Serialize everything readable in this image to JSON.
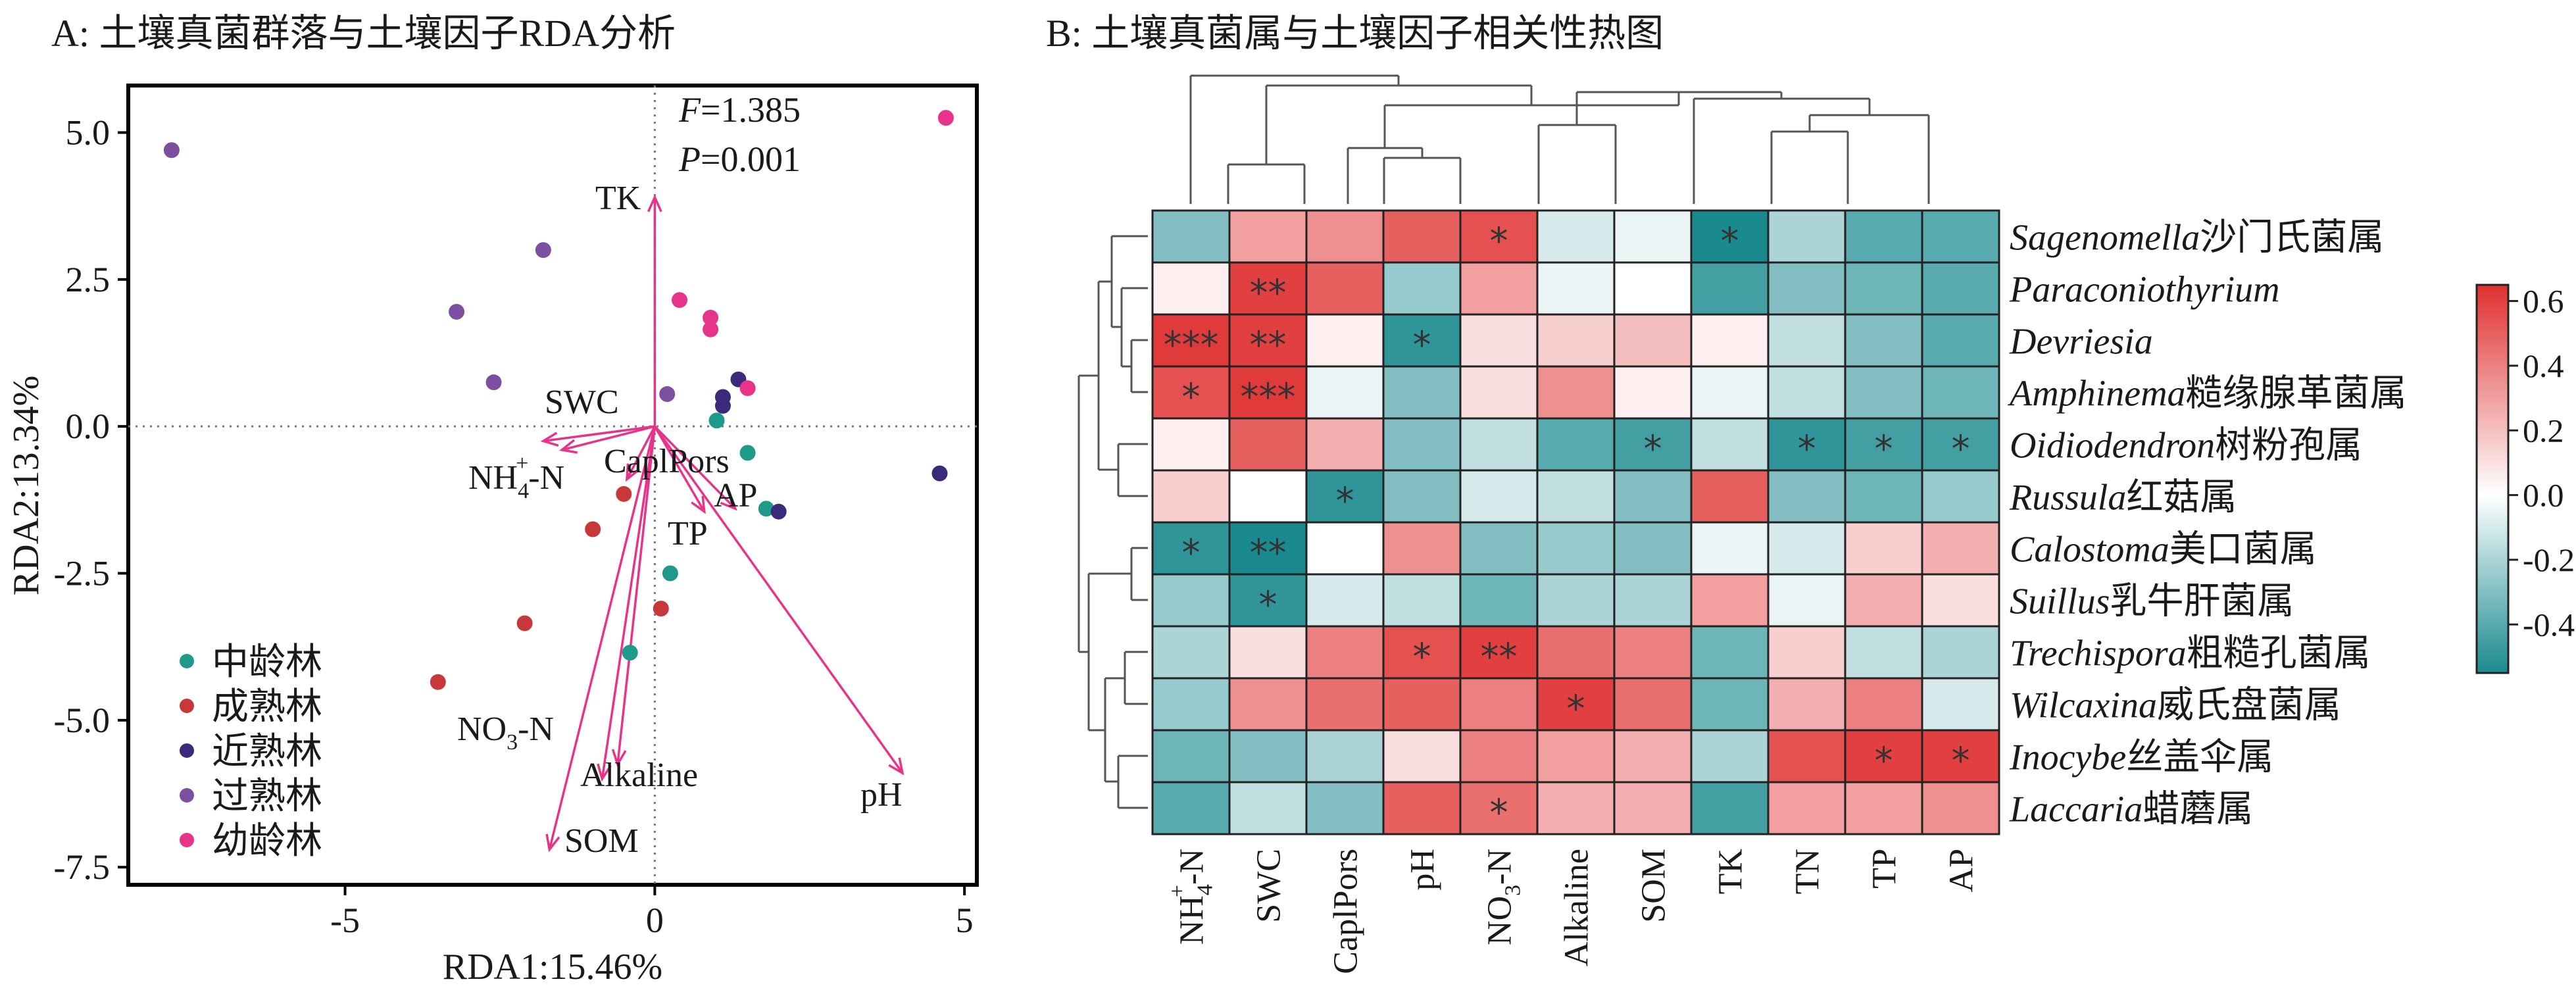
{
  "panel_a_title": "A: 土壤真菌群落与土壤因子RDA分析",
  "panel_b_title": "B: 土壤真菌属与土壤因子相关性热图",
  "colors": {
    "groups": [
      "#1f9a8a",
      "#c8383a",
      "#3b2a7a",
      "#7d4fa0",
      "#e8338a"
    ],
    "arrow": "#e8338a",
    "heat_neg": "#1b8a8f",
    "heat_mid": "#ffffff",
    "heat_pos": "#e03030"
  },
  "chart_data": [
    {
      "type": "scatter",
      "title": "A: 土壤真菌群落与土壤因子RDA分析",
      "xlabel": "RDA1:15.46%",
      "ylabel": "RDA2:13.34%",
      "xlim": [
        -8.5,
        5.2
      ],
      "ylim": [
        -7.8,
        5.8
      ],
      "x_ticks": [
        -5,
        0,
        5
      ],
      "x_tick_labels": [
        "-5",
        "0",
        "5"
      ],
      "y_ticks": [
        5.0,
        2.5,
        0.0,
        -2.5,
        -5.0,
        -7.5
      ],
      "y_tick_labels": [
        "5.0",
        "2.5",
        "0.0",
        "-2.5",
        "-5.0",
        "-7.5"
      ],
      "reference_lines": "dotted at x=0 and y=0",
      "stats": {
        "F_label": "F",
        "F_value": "=1.385",
        "P_label": "P",
        "P_value": "=0.001"
      },
      "legend_position": "bottom-left",
      "series": [
        {
          "name": "中龄林",
          "points": [
            [
              1.0,
              0.1
            ],
            [
              1.5,
              -0.45
            ],
            [
              1.8,
              -1.4
            ],
            [
              0.25,
              -2.5
            ],
            [
              -0.4,
              -3.85
            ]
          ]
        },
        {
          "name": "成熟林",
          "points": [
            [
              -0.5,
              -1.15
            ],
            [
              -1.0,
              -1.75
            ],
            [
              -2.1,
              -3.35
            ],
            [
              0.1,
              -3.1
            ],
            [
              -3.5,
              -4.35
            ]
          ]
        },
        {
          "name": "近熟林",
          "points": [
            [
              1.35,
              0.8
            ],
            [
              1.1,
              0.5
            ],
            [
              1.1,
              0.35
            ],
            [
              2.0,
              -1.45
            ],
            [
              4.6,
              -0.8
            ]
          ]
        },
        {
          "name": "过熟林",
          "points": [
            [
              -7.8,
              4.7
            ],
            [
              -1.8,
              3.0
            ],
            [
              -3.2,
              1.95
            ],
            [
              -2.6,
              0.75
            ],
            [
              0.2,
              0.55
            ]
          ]
        },
        {
          "name": "幼龄林",
          "points": [
            [
              4.7,
              5.25
            ],
            [
              0.4,
              2.15
            ],
            [
              0.9,
              1.85
            ],
            [
              0.9,
              1.65
            ],
            [
              1.5,
              0.65
            ]
          ]
        }
      ],
      "arrows": [
        {
          "name": "TK",
          "x": 0.0,
          "y": 3.9
        },
        {
          "name": "SWC",
          "x": -1.8,
          "y": -0.25
        },
        {
          "name": "NH4+-N",
          "x": -1.5,
          "y": -0.4
        },
        {
          "name": "CaplPors",
          "x": -0.45,
          "y": -0.9
        },
        {
          "name": "AP",
          "x": 1.3,
          "y": -1.4
        },
        {
          "name": "TP",
          "x": 0.8,
          "y": -1.45
        },
        {
          "name": "NO3--N",
          "x": -0.85,
          "y": -6.0
        },
        {
          "name": "Alkaline",
          "x": -0.6,
          "y": -5.75
        },
        {
          "name": "SOM",
          "x": -1.7,
          "y": -7.2
        },
        {
          "name": "pH",
          "x": 4.0,
          "y": -5.9
        }
      ],
      "arrow_labels": {
        "TK": "TK",
        "SWC": "SWC",
        "NH4_main": "NH",
        "NH4_sub": "4",
        "NH4_sup": "+",
        "NH4_tail": "-N",
        "CaplPors": "CaplPors",
        "AP": "AP",
        "TP": "TP",
        "NO3_main": "NO",
        "NO3_sub": "3",
        "NO3_tail": "-N",
        "Alkaline": "Alkaline",
        "SOM": "SOM",
        "pH": "pH"
      }
    },
    {
      "type": "heatmap",
      "title": "B: 土壤真菌属与土壤因子相关性热图",
      "columns": [
        "NH4+-N",
        "SWC",
        "CaplPors",
        "pH",
        "NO3--N",
        "Alkaline",
        "SOM",
        "TK",
        "TN",
        "TP",
        "AP"
      ],
      "column_labels": [
        {
          "main": "NH",
          "sub": "4",
          "sup": "+",
          "tail": "-N"
        },
        {
          "main": "SWC"
        },
        {
          "main": "CaplPors"
        },
        {
          "main": "pH"
        },
        {
          "main": "NO",
          "sub": "3",
          "sup": "",
          "tail": "-N"
        },
        {
          "main": "Alkaline"
        },
        {
          "main": "SOM"
        },
        {
          "main": "TK"
        },
        {
          "main": "TN"
        },
        {
          "main": "TP"
        },
        {
          "main": "AP"
        }
      ],
      "rows": [
        {
          "italic": "Sagenomella",
          "cn": "沙门氏菌属"
        },
        {
          "italic": "Paraconiothyrium",
          "cn": ""
        },
        {
          "italic": "Devriesia",
          "cn": ""
        },
        {
          "italic": "Amphinema",
          "cn": "糙缘腺革菌属"
        },
        {
          "italic": "Oidiodendron",
          "cn": "树粉孢属"
        },
        {
          "italic": "Russula",
          "cn": "红菇属"
        },
        {
          "italic": "Calostoma",
          "cn": "美口菌属"
        },
        {
          "italic": "Suillus",
          "cn": "乳牛肝菌属"
        },
        {
          "italic": "Trechispora",
          "cn": "粗糙孔菌属"
        },
        {
          "italic": "Wilcaxina",
          "cn": "威氏盘菌属"
        },
        {
          "italic": "Inocybe",
          "cn": "丝盖伞属"
        },
        {
          "italic": "Laccaria",
          "cn": "蜡蘑属"
        }
      ],
      "values": [
        [
          -0.3,
          0.3,
          0.35,
          0.5,
          0.55,
          -0.1,
          -0.05,
          -0.55,
          -0.2,
          -0.4,
          -0.4
        ],
        [
          0.05,
          0.6,
          0.5,
          -0.25,
          0.3,
          -0.05,
          0.0,
          -0.45,
          -0.3,
          -0.35,
          -0.4
        ],
        [
          0.62,
          0.6,
          0.05,
          -0.5,
          0.1,
          0.15,
          0.2,
          0.05,
          -0.15,
          -0.3,
          -0.4
        ],
        [
          0.55,
          0.62,
          -0.05,
          -0.3,
          0.1,
          0.35,
          0.05,
          -0.05,
          -0.15,
          -0.3,
          -0.35
        ],
        [
          0.05,
          0.5,
          0.25,
          -0.3,
          -0.15,
          -0.4,
          -0.45,
          -0.15,
          -0.5,
          -0.45,
          -0.45
        ],
        [
          0.15,
          0.0,
          -0.5,
          -0.3,
          -0.1,
          -0.15,
          -0.3,
          0.5,
          -0.3,
          -0.35,
          -0.25
        ],
        [
          -0.5,
          -0.55,
          0.0,
          0.35,
          -0.3,
          -0.25,
          -0.3,
          -0.05,
          -0.1,
          0.15,
          0.25
        ],
        [
          -0.25,
          -0.5,
          -0.1,
          -0.15,
          -0.35,
          -0.2,
          -0.2,
          0.3,
          -0.05,
          0.25,
          0.1
        ],
        [
          -0.2,
          0.1,
          0.4,
          0.55,
          0.6,
          0.45,
          0.4,
          -0.35,
          0.15,
          -0.15,
          -0.2
        ],
        [
          -0.25,
          0.35,
          0.45,
          0.5,
          0.4,
          0.6,
          0.45,
          -0.35,
          0.25,
          0.4,
          -0.1
        ],
        [
          -0.35,
          -0.3,
          -0.2,
          0.1,
          0.4,
          0.3,
          0.25,
          -0.2,
          0.55,
          0.6,
          0.6
        ],
        [
          -0.4,
          -0.15,
          -0.3,
          0.5,
          0.45,
          0.25,
          0.25,
          -0.45,
          0.3,
          0.3,
          0.35
        ]
      ],
      "stars": [
        [
          "",
          "",
          "",
          "",
          "*",
          "",
          "",
          "*",
          "",
          "",
          ""
        ],
        [
          "",
          "**",
          "",
          "",
          "",
          "",
          "",
          "",
          "",
          "",
          ""
        ],
        [
          "***",
          "**",
          "",
          "*",
          "",
          "",
          "",
          "",
          "",
          "",
          ""
        ],
        [
          "*",
          "***",
          "",
          "",
          "",
          "",
          "",
          "",
          "",
          "",
          ""
        ],
        [
          "",
          "",
          "",
          "",
          "",
          "",
          "*",
          "",
          "*",
          "*",
          "*"
        ],
        [
          "",
          "",
          "*",
          "",
          "",
          "",
          "",
          "",
          "",
          "",
          ""
        ],
        [
          "*",
          "**",
          "",
          "",
          "",
          "",
          "",
          "",
          "",
          "",
          ""
        ],
        [
          "",
          "*",
          "",
          "",
          "",
          "",
          "",
          "",
          "",
          "",
          ""
        ],
        [
          "",
          "",
          "",
          "*",
          "**",
          "",
          "",
          "",
          "",
          "",
          ""
        ],
        [
          "",
          "",
          "",
          "",
          "",
          "*",
          "",
          "",
          "",
          "",
          ""
        ],
        [
          "",
          "",
          "",
          "",
          "",
          "",
          "",
          "",
          "",
          "*",
          "*"
        ],
        [
          "",
          "",
          "",
          "",
          "*",
          "",
          "",
          "",
          "",
          "",
          ""
        ]
      ],
      "colorbar": {
        "min": -0.55,
        "max": 0.65,
        "ticks": [
          0.6,
          0.4,
          0.2,
          0.0,
          -0.2,
          -0.4
        ],
        "tick_labels": [
          "0.6",
          "0.4",
          "0.2",
          "0.0",
          "-0.2",
          "-0.4"
        ]
      },
      "dendrograms": "hierarchical clustering trees on rows (left) and columns (top)"
    }
  ]
}
